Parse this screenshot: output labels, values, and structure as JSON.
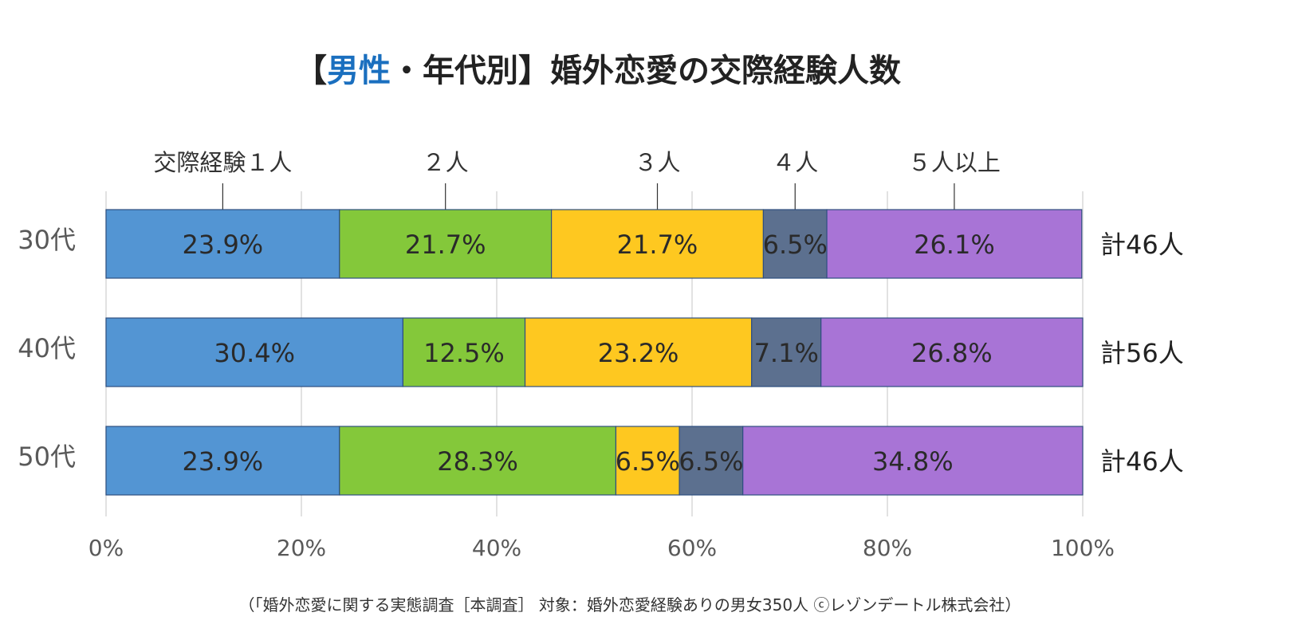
{
  "title": {
    "open": "【",
    "accent": "男性",
    "rest": "・年代別】婚外恋愛の交際経験人数"
  },
  "footer": "（「婚外恋愛に関する実態調査［本調査］ 対象：婚外恋愛経験ありの男女350人 ⓒレゾンデートル株式会社）",
  "colors": {
    "series": [
      "#5395d3",
      "#84c83a",
      "#fec820",
      "#5c708f",
      "#a874d6"
    ],
    "title_accent": "#1a6fbf"
  },
  "chart_data": {
    "type": "bar",
    "orientation": "horizontal",
    "stacked": true,
    "percent": true,
    "categories": [
      "30代",
      "40代",
      "50代"
    ],
    "series": [
      {
        "name": "交際経験１人",
        "values": [
          23.9,
          30.4,
          23.9
        ],
        "labels": [
          "23.9%",
          "30.4%",
          "23.9%"
        ]
      },
      {
        "name": "２人",
        "values": [
          21.7,
          12.5,
          28.3
        ],
        "labels": [
          "21.7%",
          "12.5%",
          "28.3%"
        ]
      },
      {
        "name": "３人",
        "values": [
          21.7,
          23.2,
          6.5
        ],
        "labels": [
          "21.7%",
          "23.2%",
          "6.5%"
        ]
      },
      {
        "name": "４人",
        "values": [
          6.5,
          7.1,
          6.5
        ],
        "labels": [
          "6.5%",
          "7.1%",
          "6.5%"
        ]
      },
      {
        "name": "５人以上",
        "values": [
          26.1,
          26.8,
          34.8
        ],
        "labels": [
          "26.1%",
          "26.8%",
          "34.8%"
        ]
      }
    ],
    "totals": [
      "計46人",
      "計56人",
      "計46人"
    ],
    "xticks": [
      "0%",
      "20%",
      "40%",
      "60%",
      "80%",
      "100%"
    ],
    "xlim": [
      0,
      100
    ],
    "grid": true,
    "legend": "top, with leader lines"
  }
}
